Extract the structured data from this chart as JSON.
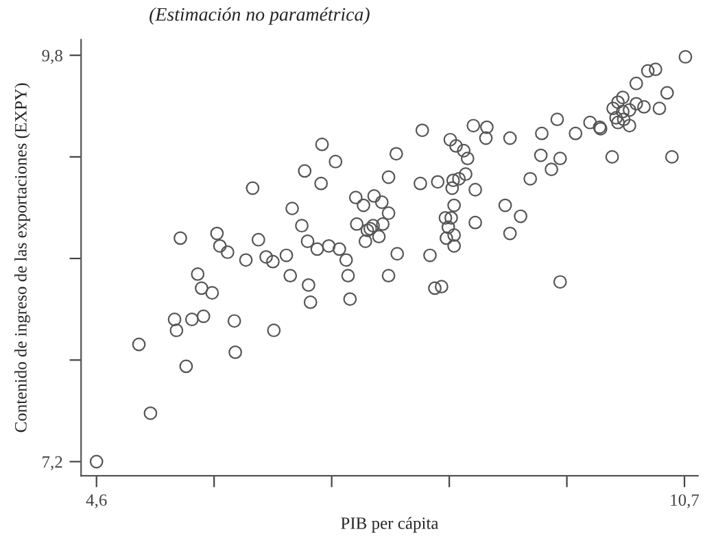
{
  "chart_data": {
    "type": "scatter",
    "title": "(Estimación no paramétrica)",
    "xlabel": "PIB per cápita",
    "ylabel": "Contenido de ingreso de las exportaciones (EXPY)",
    "xlim": [
      4.44,
      10.84
    ],
    "ylim": [
      7.11,
      9.9
    ],
    "xticks": [
      {
        "value": 4.6,
        "label": "4,6"
      },
      {
        "value": 5.82,
        "label": null
      },
      {
        "value": 7.04,
        "label": null
      },
      {
        "value": 8.26,
        "label": null
      },
      {
        "value": 9.48,
        "label": null
      },
      {
        "value": 10.7,
        "label": "10,7"
      }
    ],
    "yticks": [
      {
        "value": 7.2,
        "label": "7,2"
      },
      {
        "value": 7.85,
        "label": null
      },
      {
        "value": 8.5,
        "label": null
      },
      {
        "value": 9.15,
        "label": null
      },
      {
        "value": 9.8,
        "label": "9,8"
      }
    ],
    "grid": false,
    "marker": "circle",
    "series": [
      {
        "color": "#555555",
        "x": [
          6.94,
          7.08,
          6.76,
          6.93,
          6.22,
          7.29,
          7.37,
          7.48,
          7.56,
          6.63,
          6.73,
          7.3,
          7.47,
          7.41,
          7.57,
          7.39,
          7.53,
          7.44,
          5.47,
          5.85,
          5.88,
          5.96,
          6.28,
          6.15,
          6.36,
          6.43,
          6.57,
          6.79,
          6.89,
          7.01,
          7.12,
          7.19,
          5.65,
          5.69,
          5.8,
          6.61,
          7.21,
          6.8,
          6.82,
          7.23,
          5.41,
          5.43,
          5.59,
          5.71,
          6.03,
          6.44,
          5.04,
          6.04,
          5.53,
          5.16,
          4.6,
          10.71,
          10.32,
          10.4,
          10.2,
          10.52,
          10.06,
          10.01,
          9.96,
          10.06,
          10.13,
          10.2,
          10.28,
          10.44,
          9.99,
          10.07,
          10.01,
          10.13,
          9.72,
          9.82,
          9.83,
          9.57,
          9.38,
          9.22,
          9.95,
          10.57,
          9.21,
          9.41,
          9.32,
          9.1,
          8.89,
          8.65,
          8.64,
          8.51,
          7.98,
          8.27,
          8.33,
          8.41,
          8.45,
          7.71,
          7.63,
          7.96,
          8.14,
          8.29,
          8.3,
          8.36,
          8.43,
          8.53,
          8.31,
          8.22,
          8.28,
          8.25,
          8.23,
          8.31,
          8.31,
          8.53,
          8.84,
          9.0,
          8.89,
          7.63,
          7.72,
          8.06,
          7.63,
          8.11,
          8.18,
          9.41
        ],
        "values": [
          9.23,
          9.12,
          9.06,
          8.98,
          8.95,
          8.89,
          8.84,
          8.9,
          8.86,
          8.82,
          8.71,
          8.72,
          8.71,
          8.68,
          8.72,
          8.61,
          8.64,
          8.69,
          8.63,
          8.66,
          8.58,
          8.54,
          8.62,
          8.49,
          8.51,
          8.48,
          8.52,
          8.61,
          8.56,
          8.58,
          8.56,
          8.49,
          8.4,
          8.31,
          8.28,
          8.39,
          8.39,
          8.33,
          8.22,
          8.24,
          8.11,
          8.04,
          8.11,
          8.13,
          8.1,
          8.04,
          7.95,
          7.9,
          7.81,
          7.51,
          7.2,
          9.79,
          9.7,
          9.71,
          9.62,
          9.56,
          9.53,
          9.5,
          9.46,
          9.44,
          9.45,
          9.49,
          9.47,
          9.46,
          9.4,
          9.39,
          9.37,
          9.35,
          9.37,
          9.34,
          9.33,
          9.3,
          9.39,
          9.3,
          9.15,
          9.15,
          9.16,
          9.14,
          9.07,
          9.01,
          9.27,
          9.34,
          9.27,
          9.35,
          9.32,
          9.26,
          9.22,
          9.19,
          9.14,
          9.17,
          9.02,
          8.98,
          8.99,
          8.95,
          9.0,
          9.01,
          9.04,
          8.94,
          8.84,
          8.76,
          8.76,
          8.7,
          8.63,
          8.65,
          8.58,
          8.73,
          8.84,
          8.77,
          8.66,
          8.79,
          8.53,
          8.52,
          8.39,
          8.31,
          8.32,
          8.35
        ]
      }
    ]
  }
}
